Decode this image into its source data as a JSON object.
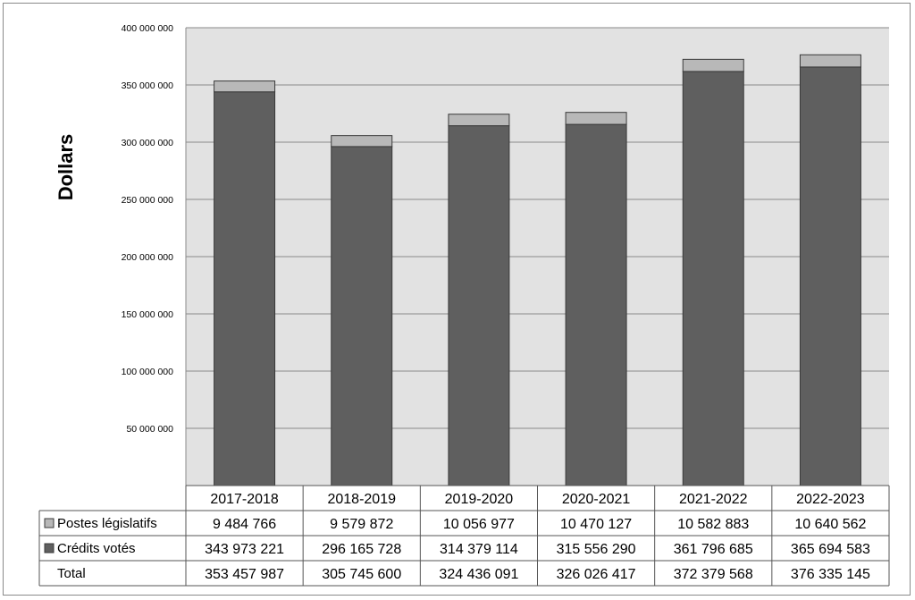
{
  "chart_data": {
    "type": "bar",
    "stacked": true,
    "ylabel": "Dollars",
    "ylim": [
      0,
      400000000
    ],
    "yticks": [
      50000000,
      100000000,
      150000000,
      200000000,
      250000000,
      300000000,
      350000000,
      400000000
    ],
    "ytick_labels": [
      "50 000 000",
      "100 000 000",
      "150 000 000",
      "200 000 000",
      "250 000 000",
      "300 000 000",
      "350 000 000",
      "400 000 000"
    ],
    "grid": true,
    "categories": [
      "2017-2018",
      "2018-2019",
      "2019-2020",
      "2020-2021",
      "2021-2022",
      "2022-2023"
    ],
    "series": [
      {
        "name": "Crédits votés",
        "color": "#5f5f5f",
        "values": [
          343973221,
          296165728,
          314379114,
          315556290,
          361796685,
          365694583
        ],
        "labels": [
          "343 973 221",
          "296 165 728",
          "314 379 114",
          "315 556 290",
          "361 796 685",
          "365 694 583"
        ]
      },
      {
        "name": "Postes législatifs",
        "color": "#b8b8b8",
        "values": [
          9484766,
          9579872,
          10056977,
          10470127,
          10582883,
          10640562
        ],
        "labels": [
          "9 484 766",
          "9 579 872",
          "10 056 977",
          "10 470 127",
          "10 582 883",
          "10 640 562"
        ]
      }
    ],
    "table": {
      "rows_order": [
        "Postes législatifs",
        "Crédits votés",
        "Total"
      ],
      "total_label": "Total",
      "totals": [
        353457987,
        305745600,
        324436091,
        326026417,
        372379568,
        376335145
      ],
      "total_labels": [
        "353 457 987",
        "305 745 600",
        "324 436 091",
        "326 026 417",
        "372 379 568",
        "376 335 145"
      ]
    },
    "colors": {
      "plot_background": "#e2e2e2",
      "grid": "#8a8a8a",
      "bar_border": "#3a3a3a"
    }
  }
}
